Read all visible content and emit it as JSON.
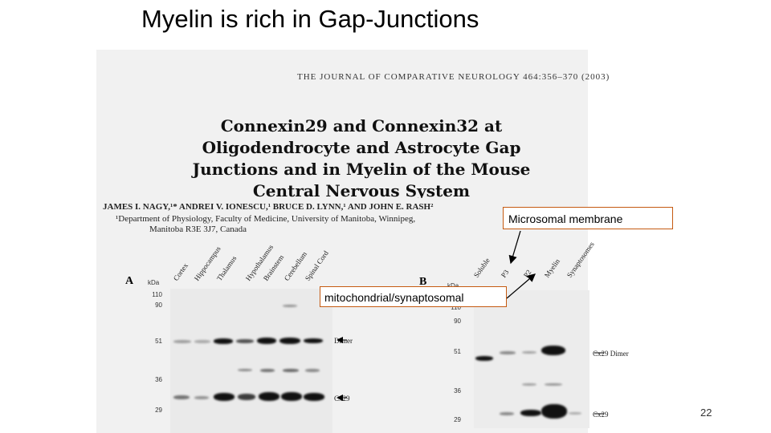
{
  "slide": {
    "title": "Myelin is rich in Gap-Junctions",
    "page_number": "22"
  },
  "paper": {
    "journal_header": "THE JOURNAL OF COMPARATIVE NEUROLOGY 464:356–370 (2003)",
    "title_lines": [
      "Connexin29 and Connexin32 at",
      "Oligodendrocyte and Astrocyte Gap",
      "Junctions and in Myelin of the Mouse",
      "Central Nervous System"
    ],
    "authors": "JAMES I. NAGY,¹* ANDREI V. IONESCU,¹ BRUCE D. LYNN,¹ AND JOHN E. RASH²",
    "affiliation_line1": "¹Department of Physiology, Faculty of Medicine, University of Manitoba, Winnipeg,",
    "affiliation_line2": "Manitoba R3E 3J7, Canada"
  },
  "figure_a": {
    "letter": "A",
    "kda": "kDa",
    "lanes": [
      "Cortex",
      "Hippocampus",
      "Thalamus",
      "Hypothalamus",
      "Brainstem",
      "Cerebellum",
      "Spinal Cord"
    ],
    "markers": [
      "110",
      "90",
      "51",
      "36",
      "29"
    ],
    "band_labels": {
      "dimer": "Dimer",
      "cx29": "Cx29"
    }
  },
  "figure_b": {
    "letter": "B",
    "kda": "kDa",
    "lanes": [
      "Soluble",
      "P3",
      "P2",
      "Myelin",
      "Synaptosomes"
    ],
    "markers": [
      "110",
      "90",
      "51",
      "36",
      "29"
    ],
    "band_labels": {
      "dimer": "Cx29 Dimer",
      "cx29": "Cx29"
    }
  },
  "callouts": {
    "microsomal": "Microsomal membrane",
    "mitochondrial": "mitochondrial/synaptosomal"
  },
  "colors": {
    "callout_border": "#c55a11",
    "band": "#111111"
  }
}
